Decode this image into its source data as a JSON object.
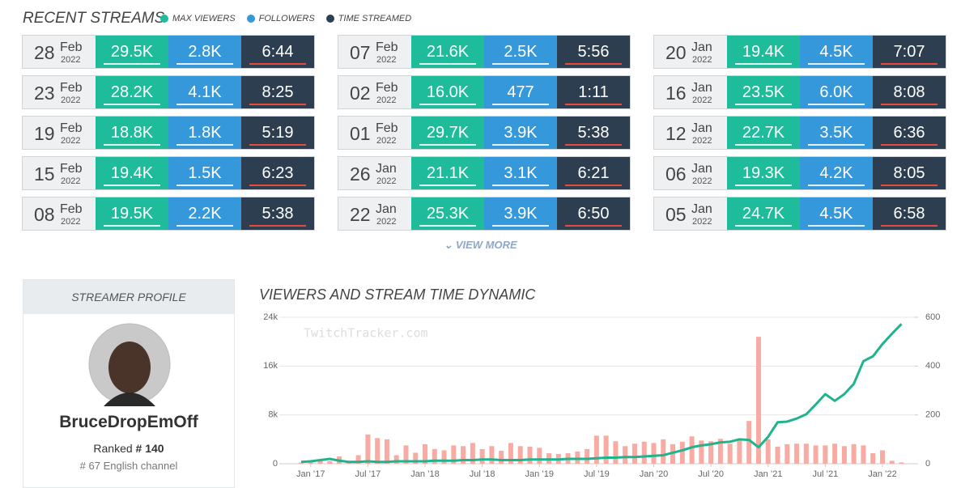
{
  "header": {
    "title": "RECENT STREAMS",
    "legend": [
      {
        "label": "MAX VIEWERS",
        "color": "#1fbc9c"
      },
      {
        "label": "FOLLOWERS",
        "color": "#3498db"
      },
      {
        "label": "TIME STREAMED",
        "color": "#2c3e50"
      }
    ]
  },
  "streams": [
    [
      {
        "day": "28",
        "month": "Feb",
        "year": "2022",
        "max_viewers": "29.5K",
        "followers": "2.8K",
        "time": "6:44"
      },
      {
        "day": "23",
        "month": "Feb",
        "year": "2022",
        "max_viewers": "28.2K",
        "followers": "4.1K",
        "time": "8:25"
      },
      {
        "day": "19",
        "month": "Feb",
        "year": "2022",
        "max_viewers": "18.8K",
        "followers": "1.8K",
        "time": "5:19"
      },
      {
        "day": "15",
        "month": "Feb",
        "year": "2022",
        "max_viewers": "19.4K",
        "followers": "1.5K",
        "time": "6:23"
      },
      {
        "day": "08",
        "month": "Feb",
        "year": "2022",
        "max_viewers": "19.5K",
        "followers": "2.2K",
        "time": "5:38"
      }
    ],
    [
      {
        "day": "07",
        "month": "Feb",
        "year": "2022",
        "max_viewers": "21.6K",
        "followers": "2.5K",
        "time": "5:56"
      },
      {
        "day": "02",
        "month": "Feb",
        "year": "2022",
        "max_viewers": "16.0K",
        "followers": "477",
        "time": "1:11"
      },
      {
        "day": "01",
        "month": "Feb",
        "year": "2022",
        "max_viewers": "29.7K",
        "followers": "3.9K",
        "time": "5:38"
      },
      {
        "day": "26",
        "month": "Jan",
        "year": "2022",
        "max_viewers": "21.1K",
        "followers": "3.1K",
        "time": "6:21"
      },
      {
        "day": "22",
        "month": "Jan",
        "year": "2022",
        "max_viewers": "25.3K",
        "followers": "3.9K",
        "time": "6:50"
      }
    ],
    [
      {
        "day": "20",
        "month": "Jan",
        "year": "2022",
        "max_viewers": "19.4K",
        "followers": "4.5K",
        "time": "7:07"
      },
      {
        "day": "16",
        "month": "Jan",
        "year": "2022",
        "max_viewers": "23.5K",
        "followers": "6.0K",
        "time": "8:08"
      },
      {
        "day": "12",
        "month": "Jan",
        "year": "2022",
        "max_viewers": "22.7K",
        "followers": "3.5K",
        "time": "6:36"
      },
      {
        "day": "06",
        "month": "Jan",
        "year": "2022",
        "max_viewers": "19.3K",
        "followers": "4.2K",
        "time": "8:05"
      },
      {
        "day": "05",
        "month": "Jan",
        "year": "2022",
        "max_viewers": "24.7K",
        "followers": "4.5K",
        "time": "6:58"
      }
    ]
  ],
  "view_more": "VIEW MORE",
  "profile": {
    "heading": "STREAMER PROFILE",
    "name": "BruceDropEmOff",
    "ranked_label": "Ranked",
    "rank": "# 140",
    "language_rank": "# 67",
    "language_label": "English channel"
  },
  "chart_data": {
    "type": "combo",
    "title": "VIEWERS AND STREAM TIME DYNAMIC",
    "watermark": "TwitchTracker.com",
    "categories": [
      null,
      "Jan ’17",
      null,
      null,
      null,
      null,
      null,
      "Jul ’17",
      null,
      null,
      null,
      null,
      null,
      "Jan ’18",
      null,
      null,
      null,
      null,
      null,
      "Jul ’18",
      null,
      null,
      null,
      null,
      null,
      "Jan ’19",
      null,
      null,
      null,
      null,
      null,
      "Jul ’19",
      null,
      null,
      null,
      null,
      null,
      "Jan ’20",
      null,
      null,
      null,
      null,
      null,
      "Jul ’20",
      null,
      null,
      null,
      null,
      null,
      "Jan ’21",
      null,
      null,
      null,
      null,
      null,
      "Jul ’21",
      null,
      null,
      null,
      null,
      null,
      "Jan ’22",
      null,
      null
    ],
    "series": [
      {
        "type": "bar",
        "axis": "y2",
        "color": "#f7aba2",
        "values": [
          5,
          10,
          15,
          10,
          30,
          5,
          35,
          120,
          105,
          100,
          35,
          75,
          45,
          80,
          60,
          55,
          75,
          72,
          85,
          60,
          72,
          53,
          85,
          72,
          70,
          65,
          43,
          40,
          43,
          50,
          60,
          115,
          115,
          92,
          72,
          82,
          90,
          85,
          100,
          80,
          90,
          112,
          95,
          92,
          102,
          82,
          95,
          175,
          520,
          100,
          70,
          80,
          82,
          82,
          75,
          75,
          82,
          72,
          80,
          75,
          43,
          55,
          12,
          5
        ]
      },
      {
        "type": "line",
        "axis": "y",
        "color": "#1fb48e",
        "values": [
          300,
          400,
          600,
          800,
          500,
          300,
          300,
          400,
          300,
          300,
          400,
          400,
          400,
          400,
          500,
          500,
          500,
          600,
          600,
          700,
          700,
          600,
          600,
          600,
          700,
          700,
          700,
          700,
          800,
          800,
          800,
          900,
          1000,
          1000,
          1100,
          1100,
          1200,
          1300,
          1400,
          1800,
          2200,
          2700,
          3000,
          3200,
          3500,
          3600,
          4000,
          3900,
          2700,
          4400,
          6800,
          6900,
          7400,
          8100,
          9700,
          11400,
          10300,
          11400,
          13100,
          16800,
          17600,
          19600,
          21300,
          22900
        ]
      }
    ],
    "ylim": [
      0,
      24000
    ],
    "yticks": [
      0,
      {
        "value": 8000,
        "label": "8k"
      },
      {
        "value": 16000,
        "label": "16k"
      },
      {
        "value": 24000,
        "label": "24k"
      }
    ],
    "y2lim": [
      0,
      600
    ],
    "y2ticks": [
      0,
      200,
      400,
      600
    ],
    "grid": true
  }
}
